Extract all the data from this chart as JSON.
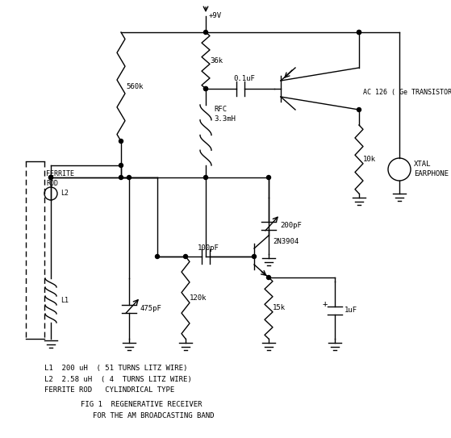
{
  "title_line1": "FIG 1  REGENERATIVE RECEIVER",
  "title_line2": "FOR THE AM BROADCASTING BAND",
  "background_color": "#ffffff",
  "line_color": "#000000",
  "text_color": "#000000",
  "figsize": [
    5.59,
    5.43
  ],
  "dpi": 100,
  "notes": [
    "L1  200 uH  ( 51 TURNS LITZ WIRE)",
    "L2  2.58 uH  ( 4  TURNS LITZ WIRE)",
    "FERRITE ROD   CYLINDRICAL TYPE"
  ]
}
